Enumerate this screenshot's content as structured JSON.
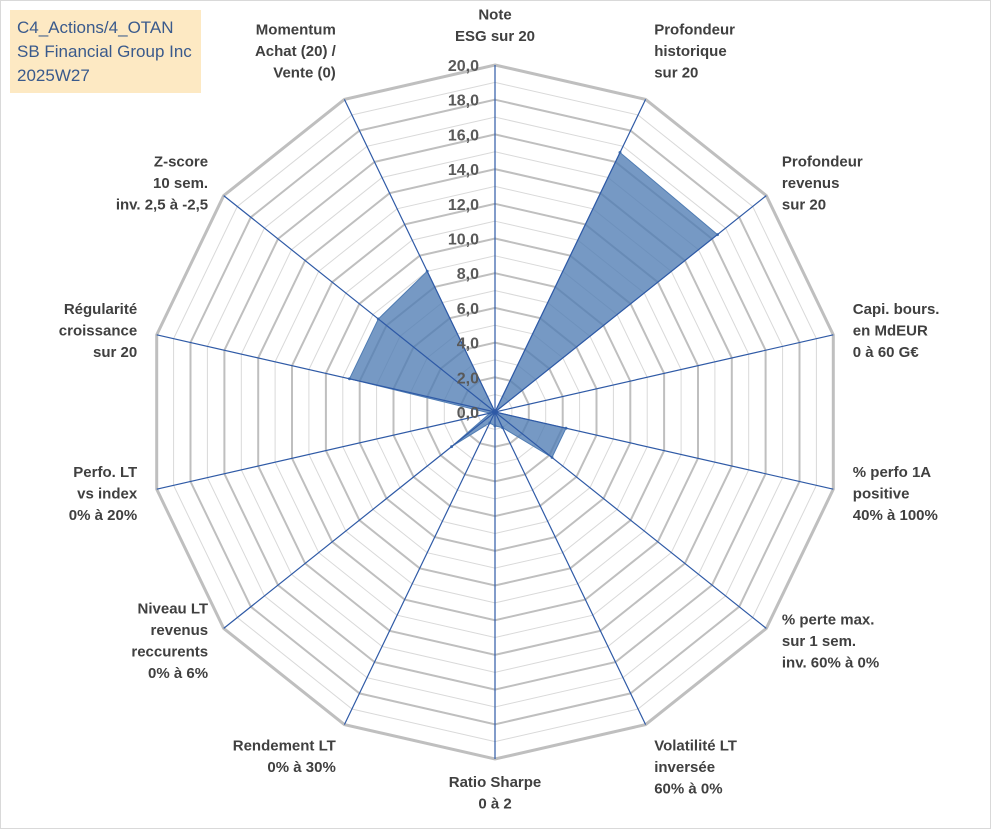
{
  "header": {
    "line1": "C4_Actions/4_OTAN",
    "line2": "SB Financial Group Inc",
    "line3": "2025W27"
  },
  "colors": {
    "fill": "#4f7cb3",
    "spoke": "#2f5aa6",
    "grid_major": "#bfbfbf",
    "grid_minor": "#d9d9d9",
    "header_bg": "#fde9c3",
    "header_text": "#3a5a8c"
  },
  "chart_data": {
    "type": "radar",
    "range": [
      0,
      20
    ],
    "tick_step": 2,
    "tick_labels": [
      "0,0",
      "2,0",
      "4,0",
      "6,0",
      "8,0",
      "10,0",
      "12,0",
      "14,0",
      "16,0",
      "18,0",
      "20,0"
    ],
    "axes": [
      [
        "Note",
        "ESG sur 20"
      ],
      [
        "Profondeur",
        "historique",
        "sur 20"
      ],
      [
        "Profondeur",
        "revenus",
        "sur 20"
      ],
      [
        "Capi. bours.",
        "en MdEUR",
        "0 à 60 G€"
      ],
      [
        "% perfo 1A",
        "positive",
        "40% à 100%"
      ],
      [
        "% perte max.",
        "sur 1 sem.",
        "inv. 60% à 0%"
      ],
      [
        "Volatilité LT",
        "inversée",
        "60% à 0%"
      ],
      [
        "Ratio Sharpe",
        "0 à 2"
      ],
      [
        "Rendement LT",
        "0% à 30%"
      ],
      [
        "Niveau LT",
        "revenus",
        "reccurents",
        "0% à 6%"
      ],
      [
        "Perfo. LT",
        "vs index",
        "0% à 20%"
      ],
      [
        "Régularité",
        "croissance",
        "sur 20"
      ],
      [
        "Z-score",
        "10 sem.",
        "inv. 2,5 à -2,5"
      ],
      [
        "Momentum",
        "Achat (20) /",
        "Vente (0)"
      ]
    ],
    "series": [
      {
        "values": [
          0,
          16.6,
          16.4,
          0,
          4.2,
          4.2,
          1.0,
          0.8,
          0.7,
          3.2,
          0.3,
          8.6,
          8.6,
          9.0
        ]
      }
    ]
  }
}
